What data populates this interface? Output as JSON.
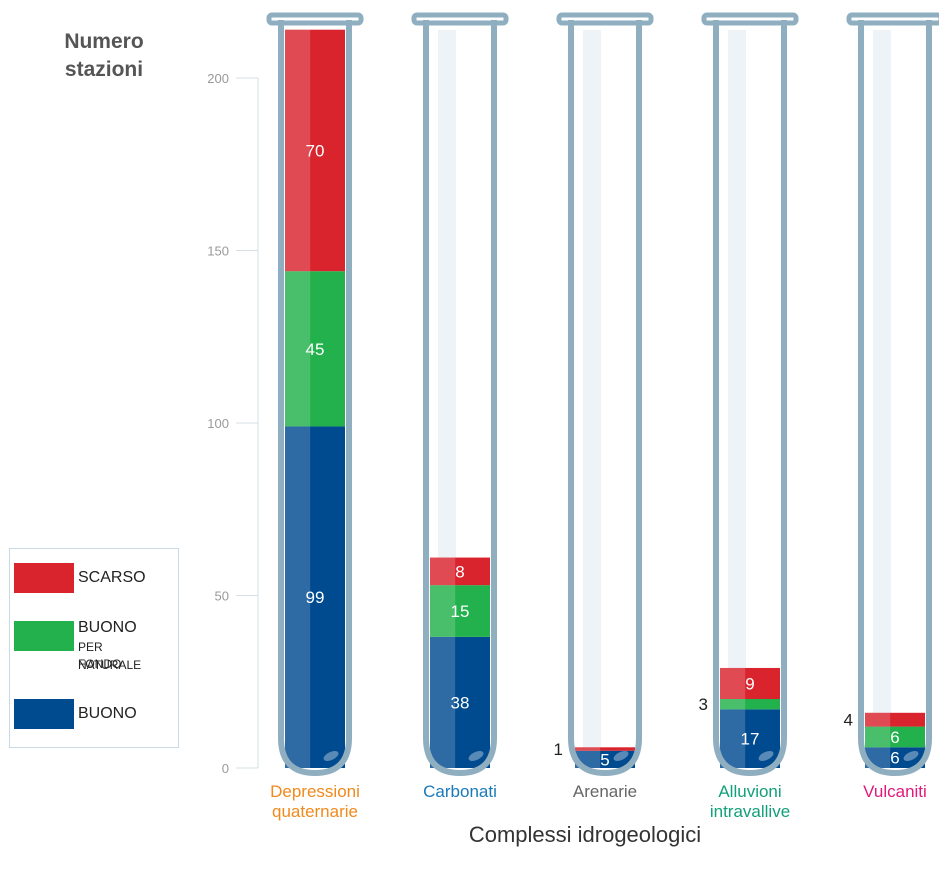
{
  "axis": {
    "ylabel_line1": "Numero",
    "ylabel_line2": "stazioni",
    "xlabel": "Complessi idrogeologici"
  },
  "legend": {
    "scarso": "SCARSO",
    "buono_fondo": "BUONO",
    "buono_fondo_sub1": "PER FONDO",
    "buono_fondo_sub2": "NATURALE",
    "buono": "BUONO"
  },
  "colors": {
    "buono": "#004a8f",
    "buono_fondo": "#22b14c",
    "scarso": "#d9232d",
    "tube": "#8fafc0"
  },
  "chart_data": {
    "type": "bar",
    "stacked": true,
    "ylim": [
      0,
      200
    ],
    "yticks": [
      0,
      50,
      100,
      150,
      200
    ],
    "categories": [
      {
        "line1": "Depressioni",
        "line2": "quaternarie",
        "color": "#f08a1c"
      },
      {
        "line1": "Carbonati",
        "line2": "",
        "color": "#1a7ab8"
      },
      {
        "line1": "Arenarie",
        "line2": "",
        "color": "#666666"
      },
      {
        "line1": "Alluvioni",
        "line2": "intravallive",
        "color": "#12a07a"
      },
      {
        "line1": "Vulcaniti",
        "line2": "",
        "color": "#e0197d"
      }
    ],
    "series": [
      {
        "name": "BUONO",
        "values": [
          99,
          38,
          5,
          17,
          6
        ]
      },
      {
        "name": "BUONO PER FONDO NATURALE",
        "values": [
          45,
          15,
          0,
          3,
          6
        ]
      },
      {
        "name": "SCARSO",
        "values": [
          70,
          8,
          1,
          9,
          4
        ]
      }
    ],
    "labels_outside": [
      {
        "category": 2,
        "series": 2,
        "text": "1"
      },
      {
        "category": 3,
        "series": 1,
        "text": "3"
      },
      {
        "category": 4,
        "series": 2,
        "text": "4"
      }
    ]
  }
}
